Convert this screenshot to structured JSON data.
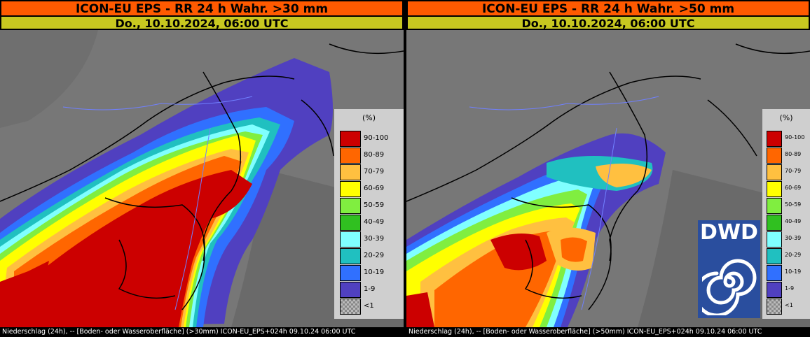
{
  "panels": [
    {
      "title": "ICON-EU EPS - RR 24 h Wahr. >30 mm",
      "date": "Do., 10.10.2024, 06:00 UTC",
      "footer": "Niederschlag (24h), -- [Boden- oder Wasseroberfläche] (>30mm) ICON-EU_EPS+024h 09.10.24 06:00 UTC"
    },
    {
      "title": "ICON-EU EPS - RR 24 h Wahr. >50 mm",
      "date": "Do., 10.10.2024, 06:00 UTC",
      "footer": "Niederschlag (24h), -- [Boden- oder Wasseroberfläche] (>50mm) ICON-EU_EPS+024h 09.10.24 06:00 UTC"
    }
  ],
  "legend": {
    "unit": "(%)",
    "classes": [
      {
        "label": "90-100",
        "color": "#cc0000"
      },
      {
        "label": "80-89",
        "color": "#ff6600"
      },
      {
        "label": "70-79",
        "color": "#ffc040"
      },
      {
        "label": "60-69",
        "color": "#ffff00"
      },
      {
        "label": "50-59",
        "color": "#80ee40"
      },
      {
        "label": "40-49",
        "color": "#30c020"
      },
      {
        "label": "30-39",
        "color": "#80ffff"
      },
      {
        "label": "20-29",
        "color": "#20c0c0"
      },
      {
        "label": "10-19",
        "color": "#3070ff"
      },
      {
        "label": "1-9",
        "color": "#5040c0"
      },
      {
        "label": "<1",
        "color": "#999999"
      }
    ]
  },
  "logo": {
    "text": "DWD",
    "color": "#2a4e9e"
  }
}
